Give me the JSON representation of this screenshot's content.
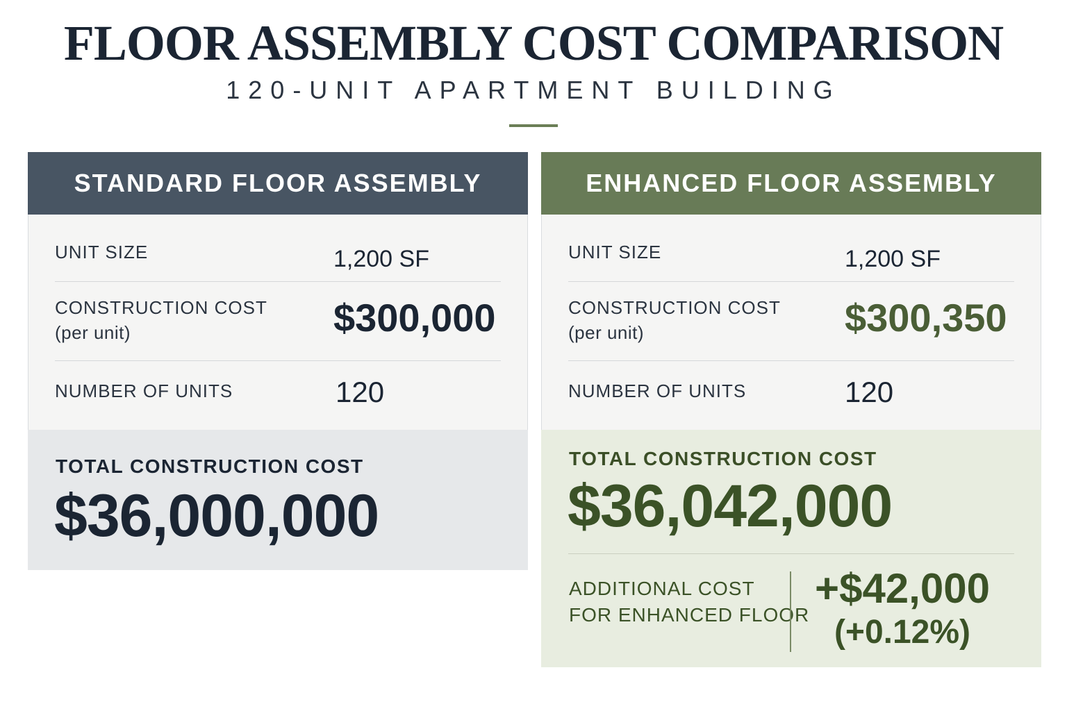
{
  "header": {
    "title": "FLOOR ASSEMBLY COST COMPARISON",
    "subtitle": "120-UNIT APARTMENT BUILDING"
  },
  "standard": {
    "heading": "STANDARD FLOOR ASSEMBLY",
    "unit_size_label": "UNIT SIZE",
    "unit_size_value": "1,200 SF",
    "cost_label": "CONSTRUCTION COST",
    "cost_sublabel": "(per unit)",
    "cost_value": "$300,000",
    "units_label": "NUMBER OF UNITS",
    "units_value": "120",
    "total_label": "TOTAL CONSTRUCTION COST",
    "total_value": "$36,000,000"
  },
  "enhanced": {
    "heading": "ENHANCED FLOOR ASSEMBLY",
    "unit_size_label": "UNIT SIZE",
    "unit_size_value": "1,200 SF",
    "cost_label": "CONSTRUCTION COST",
    "cost_sublabel": "(per unit)",
    "cost_value": "$300,350",
    "units_label": "NUMBER OF UNITS",
    "units_value": "120",
    "total_label": "TOTAL CONSTRUCTION COST",
    "total_value": "$36,042,000",
    "additional_label_line1": "ADDITIONAL COST",
    "additional_label_line2": "FOR ENHANCED FLOOR",
    "additional_amount": "+$42,000",
    "additional_percent": "(+0.12%)"
  },
  "colors": {
    "standard_header": "#485563",
    "enhanced_header": "#687b57",
    "accent_green": "#3b5227",
    "divider_accent": "#6b7f56"
  }
}
